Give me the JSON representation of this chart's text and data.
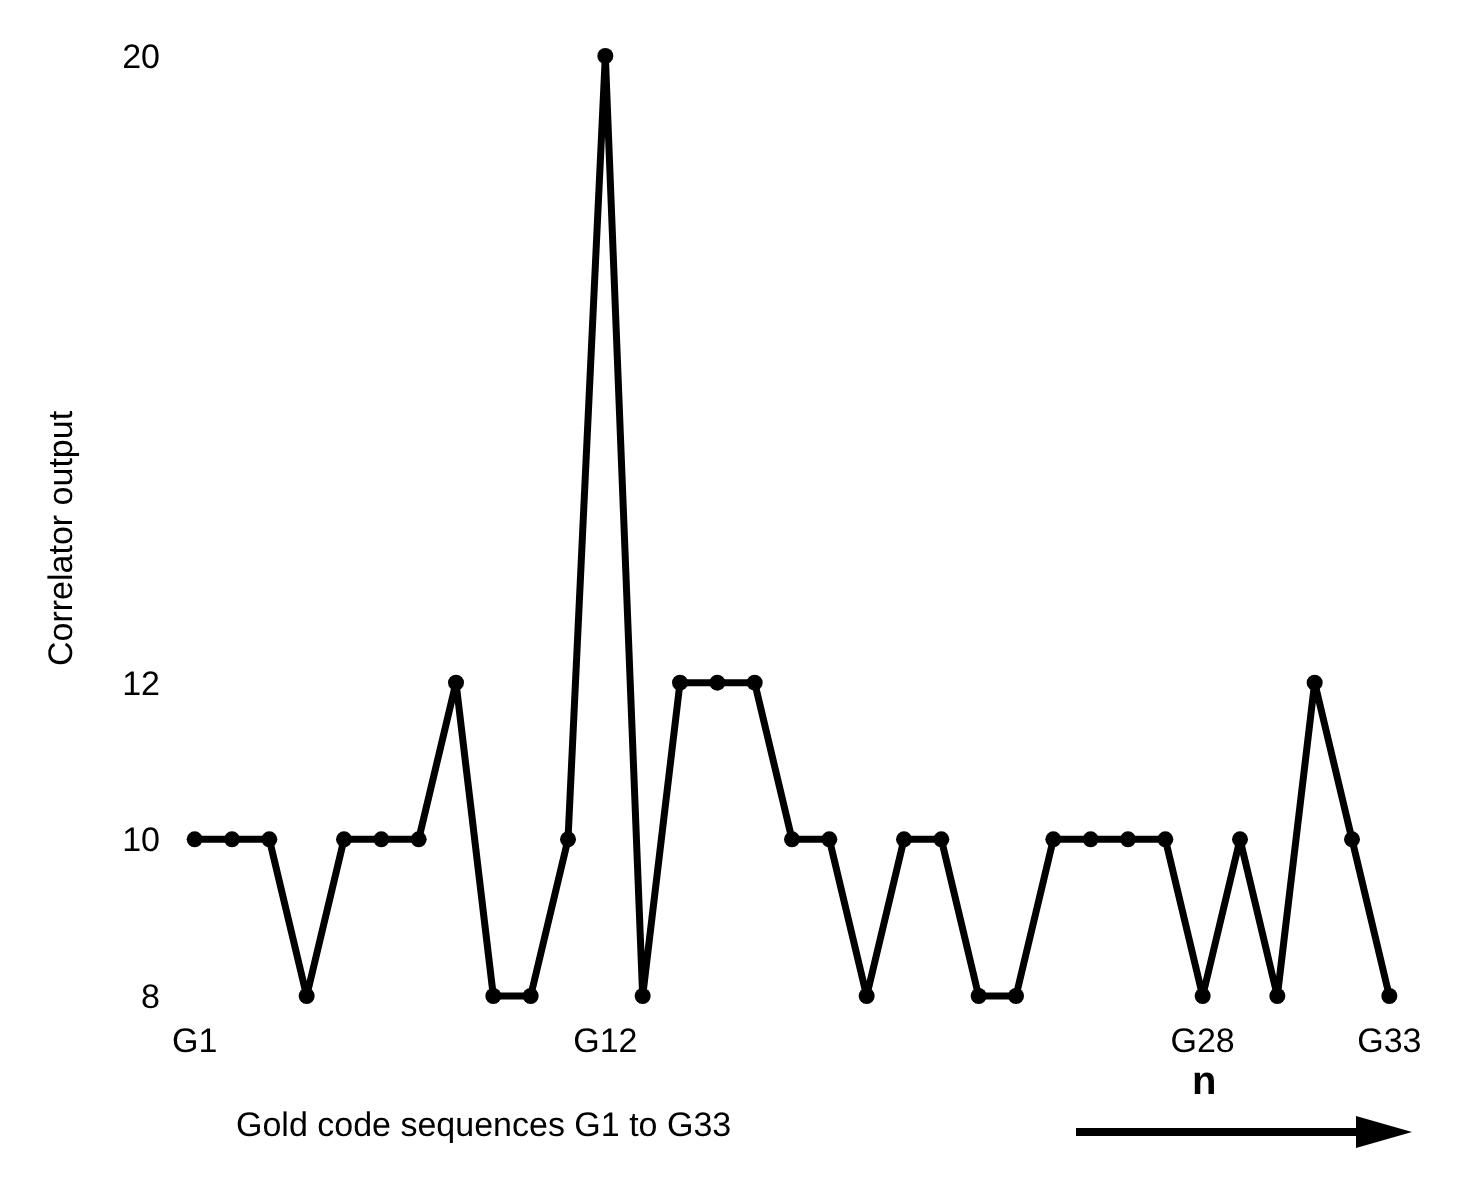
{
  "chart_data": {
    "type": "line",
    "xlabel": "Gold code sequences G1 to G33",
    "ylabel": "Correlator output",
    "categories": [
      "G1",
      null,
      null,
      null,
      null,
      null,
      null,
      null,
      null,
      null,
      null,
      "G12",
      null,
      null,
      null,
      null,
      null,
      null,
      null,
      null,
      null,
      null,
      null,
      null,
      null,
      null,
      null,
      "G28",
      null,
      null,
      null,
      null,
      "G33"
    ],
    "series": [
      {
        "color": "#000000",
        "values": [
          10,
          10,
          10,
          8,
          10,
          10,
          10,
          12,
          8,
          8,
          10,
          20,
          8,
          12,
          12,
          12,
          10,
          10,
          8,
          10,
          10,
          8,
          8,
          10,
          10,
          10,
          10,
          8,
          10,
          8,
          12,
          10,
          8
        ]
      }
    ],
    "ylim": [
      8,
      20
    ],
    "yticks": [
      8,
      10,
      12,
      20
    ],
    "grid": false,
    "legend": false,
    "marker": "circle",
    "line_style": "solid",
    "annotations": [
      "n"
    ]
  }
}
